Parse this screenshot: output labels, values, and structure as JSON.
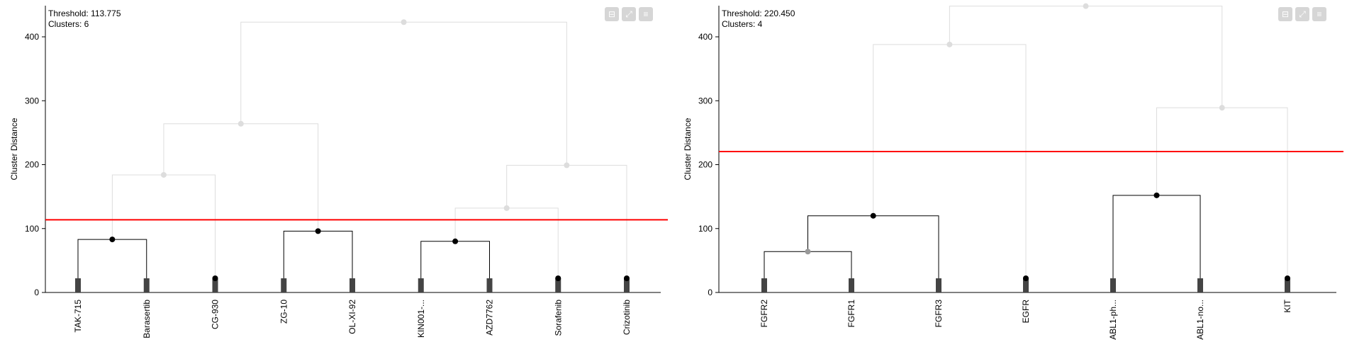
{
  "panels": [
    {
      "threshold_label": "Threshold: 113.775",
      "clusters_label": "Clusters: 6",
      "toolbar": {
        "collapse_icon": "⊟",
        "expand_icon": "⤢",
        "menu_icon": "≡"
      }
    },
    {
      "threshold_label": "Threshold: 220.450",
      "clusters_label": "Clusters: 4",
      "toolbar": {
        "collapse_icon": "⊟",
        "expand_icon": "⤢",
        "menu_icon": "≡"
      }
    }
  ],
  "chart_data": [
    {
      "type": "dendrogram",
      "ylabel": "Cluster Distance",
      "ylim": [
        0,
        450
      ],
      "yticks": [
        0,
        100,
        200,
        300,
        400
      ],
      "threshold": 113.775,
      "threshold_color": "#ff0000",
      "leaves": [
        "TAK-715",
        "Barasertib",
        "CG-930",
        "ZG-10",
        "OL-XI-92",
        "KIN001-...",
        "AZD7762",
        "Sorafenib",
        "Crizotinib"
      ],
      "merges": [
        {
          "left": "L0",
          "right": "L1",
          "height": 83
        },
        {
          "left": "L3",
          "right": "L4",
          "height": 96
        },
        {
          "left": "L5",
          "right": "L6",
          "height": 80
        },
        {
          "left": "N0",
          "right": "L2",
          "height": 184
        },
        {
          "left": "N2",
          "right": "L7",
          "height": 132
        },
        {
          "left": "N4",
          "right": "L8",
          "height": 199
        },
        {
          "left": "N3",
          "right": "N1",
          "height": 264
        },
        {
          "left": "N6",
          "right": "N5",
          "height": 423
        }
      ]
    },
    {
      "type": "dendrogram",
      "ylabel": "Cluster Distance",
      "ylim": [
        0,
        450
      ],
      "yticks": [
        0,
        100,
        200,
        300,
        400
      ],
      "threshold": 220.45,
      "threshold_color": "#ff0000",
      "leaves": [
        "FGFR2",
        "FGFR1",
        "FGFR3",
        "EGFR",
        "ABL1-ph...",
        "ABL1-no...",
        "KIT"
      ],
      "merges": [
        {
          "left": "L0",
          "right": "L1",
          "height": 64
        },
        {
          "left": "N0",
          "right": "L2",
          "height": 120
        },
        {
          "left": "L4",
          "right": "L5",
          "height": 152
        },
        {
          "left": "N2",
          "right": "L6",
          "height": 289
        },
        {
          "left": "N1",
          "right": "L3",
          "height": 388
        },
        {
          "left": "N4",
          "right": "N3",
          "height": 448
        }
      ]
    }
  ]
}
